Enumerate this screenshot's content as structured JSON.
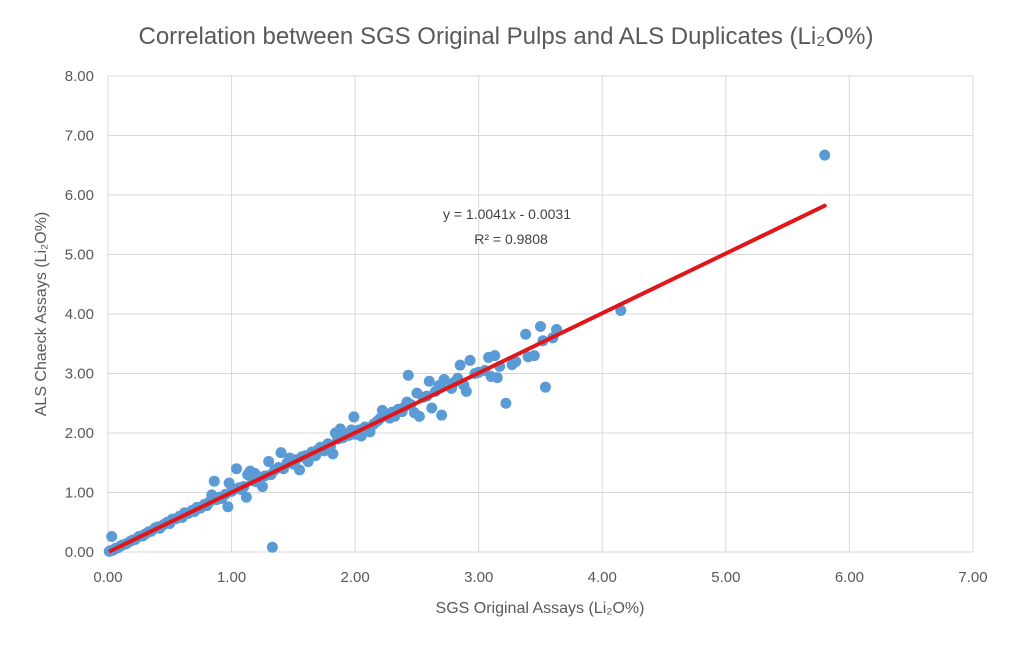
{
  "chart_data": {
    "type": "scatter",
    "title": "Correlation between SGS Original Pulps and ALS Duplicates (Li₂O%)",
    "xlabel": "SGS Original Assays (Li₂O%)",
    "ylabel": "ALS Chaeck Assays (Li₂O%)",
    "xlim": [
      0,
      7
    ],
    "ylim": [
      0,
      8
    ],
    "x_ticks": [
      "0.00",
      "1.00",
      "2.00",
      "3.00",
      "4.00",
      "5.00",
      "6.00",
      "7.00"
    ],
    "y_ticks": [
      "0.00",
      "1.00",
      "2.00",
      "3.00",
      "4.00",
      "5.00",
      "6.00",
      "7.00",
      "8.00"
    ],
    "grid": true,
    "colors": {
      "points": "#5B9BD5",
      "trendline": "#E0161B",
      "grid": "#D9D9D9"
    },
    "trendline": {
      "slope": 1.0041,
      "intercept": -0.0031,
      "x_range": [
        0.02,
        5.8
      ],
      "equation": "y = 1.0041x - 0.0031",
      "r_squared": "R² = 0.9808"
    },
    "series": [
      {
        "points": [
          [
            0.01,
            0.01
          ],
          [
            0.02,
            0.02
          ],
          [
            0.03,
            0.26
          ],
          [
            0.04,
            0.03
          ],
          [
            0.06,
            0.06
          ],
          [
            0.08,
            0.07
          ],
          [
            0.1,
            0.1
          ],
          [
            0.12,
            0.12
          ],
          [
            0.15,
            0.14
          ],
          [
            0.18,
            0.18
          ],
          [
            0.2,
            0.2
          ],
          [
            0.22,
            0.21
          ],
          [
            0.25,
            0.26
          ],
          [
            0.28,
            0.27
          ],
          [
            0.3,
            0.3
          ],
          [
            0.33,
            0.34
          ],
          [
            0.35,
            0.35
          ],
          [
            0.38,
            0.4
          ],
          [
            0.4,
            0.42
          ],
          [
            0.42,
            0.4
          ],
          [
            0.45,
            0.46
          ],
          [
            0.48,
            0.5
          ],
          [
            0.5,
            0.48
          ],
          [
            0.52,
            0.55
          ],
          [
            0.55,
            0.56
          ],
          [
            0.58,
            0.6
          ],
          [
            0.6,
            0.58
          ],
          [
            0.62,
            0.66
          ],
          [
            0.65,
            0.65
          ],
          [
            0.68,
            0.7
          ],
          [
            0.7,
            0.68
          ],
          [
            0.72,
            0.75
          ],
          [
            0.75,
            0.74
          ],
          [
            0.78,
            0.8
          ],
          [
            0.8,
            0.78
          ],
          [
            0.82,
            0.84
          ],
          [
            0.84,
            0.96
          ],
          [
            0.86,
            1.19
          ],
          [
            0.88,
            0.88
          ],
          [
            0.9,
            0.92
          ],
          [
            0.92,
            0.9
          ],
          [
            0.95,
            0.97
          ],
          [
            0.97,
            0.76
          ],
          [
            0.98,
            1.16
          ],
          [
            1.0,
            1.02
          ],
          [
            1.02,
            1.05
          ],
          [
            1.04,
            1.4
          ],
          [
            1.06,
            1.08
          ],
          [
            1.08,
            1.05
          ],
          [
            1.1,
            1.1
          ],
          [
            1.12,
            0.92
          ],
          [
            1.13,
            1.3
          ],
          [
            1.15,
            1.36
          ],
          [
            1.17,
            1.2
          ],
          [
            1.19,
            1.32
          ],
          [
            1.2,
            1.18
          ],
          [
            1.22,
            1.25
          ],
          [
            1.25,
            1.1
          ],
          [
            1.27,
            1.28
          ],
          [
            1.3,
            1.52
          ],
          [
            1.32,
            1.3
          ],
          [
            1.33,
            0.08
          ],
          [
            1.35,
            1.38
          ],
          [
            1.38,
            1.42
          ],
          [
            1.4,
            1.67
          ],
          [
            1.42,
            1.4
          ],
          [
            1.45,
            1.5
          ],
          [
            1.47,
            1.58
          ],
          [
            1.5,
            1.48
          ],
          [
            1.52,
            1.55
          ],
          [
            1.55,
            1.38
          ],
          [
            1.57,
            1.6
          ],
          [
            1.6,
            1.62
          ],
          [
            1.62,
            1.52
          ],
          [
            1.65,
            1.68
          ],
          [
            1.68,
            1.62
          ],
          [
            1.7,
            1.72
          ],
          [
            1.72,
            1.76
          ],
          [
            1.75,
            1.7
          ],
          [
            1.78,
            1.82
          ],
          [
            1.8,
            1.78
          ],
          [
            1.82,
            1.65
          ],
          [
            1.84,
            2.0
          ],
          [
            1.86,
            1.9
          ],
          [
            1.88,
            2.07
          ],
          [
            1.9,
            1.92
          ],
          [
            1.92,
            1.98
          ],
          [
            1.95,
            1.96
          ],
          [
            1.97,
            2.05
          ],
          [
            1.99,
            2.27
          ],
          [
            2.0,
            1.98
          ],
          [
            2.03,
            2.05
          ],
          [
            2.05,
            1.95
          ],
          [
            2.08,
            2.1
          ],
          [
            2.1,
            2.08
          ],
          [
            2.12,
            2.02
          ],
          [
            2.15,
            2.15
          ],
          [
            2.18,
            2.2
          ],
          [
            2.2,
            2.24
          ],
          [
            2.22,
            2.38
          ],
          [
            2.25,
            2.3
          ],
          [
            2.28,
            2.25
          ],
          [
            2.3,
            2.35
          ],
          [
            2.32,
            2.28
          ],
          [
            2.35,
            2.4
          ],
          [
            2.38,
            2.36
          ],
          [
            2.4,
            2.44
          ],
          [
            2.42,
            2.52
          ],
          [
            2.43,
            2.97
          ],
          [
            2.45,
            2.48
          ],
          [
            2.48,
            2.34
          ],
          [
            2.5,
            2.67
          ],
          [
            2.52,
            2.28
          ],
          [
            2.55,
            2.6
          ],
          [
            2.58,
            2.62
          ],
          [
            2.6,
            2.87
          ],
          [
            2.62,
            2.42
          ],
          [
            2.65,
            2.7
          ],
          [
            2.68,
            2.8
          ],
          [
            2.7,
            2.3
          ],
          [
            2.72,
            2.9
          ],
          [
            2.75,
            2.82
          ],
          [
            2.78,
            2.75
          ],
          [
            2.8,
            2.85
          ],
          [
            2.83,
            2.92
          ],
          [
            2.85,
            3.14
          ],
          [
            2.88,
            2.8
          ],
          [
            2.9,
            2.7
          ],
          [
            2.93,
            3.22
          ],
          [
            2.97,
            3.0
          ],
          [
            3.0,
            3.02
          ],
          [
            3.05,
            3.05
          ],
          [
            3.08,
            3.27
          ],
          [
            3.1,
            2.95
          ],
          [
            3.13,
            3.3
          ],
          [
            3.15,
            2.93
          ],
          [
            3.17,
            3.12
          ],
          [
            3.22,
            2.5
          ],
          [
            3.27,
            3.15
          ],
          [
            3.3,
            3.2
          ],
          [
            3.38,
            3.66
          ],
          [
            3.4,
            3.28
          ],
          [
            3.45,
            3.3
          ],
          [
            3.5,
            3.79
          ],
          [
            3.52,
            3.55
          ],
          [
            3.54,
            2.77
          ],
          [
            3.6,
            3.6
          ],
          [
            3.63,
            3.74
          ],
          [
            4.15,
            4.06
          ],
          [
            5.8,
            6.67
          ]
        ]
      }
    ]
  }
}
